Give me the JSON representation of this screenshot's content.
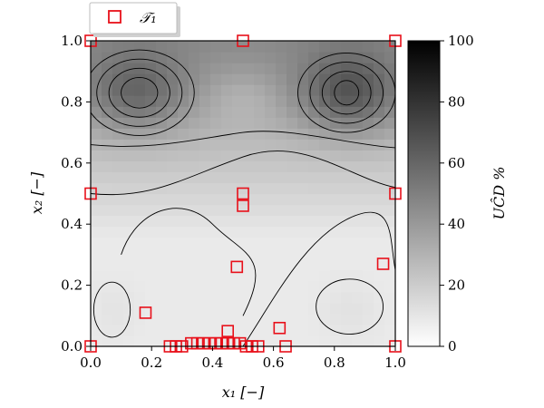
{
  "chart_data": {
    "type": "heatmap",
    "title": "",
    "xlabel": "x₁ [−]",
    "ylabel": "x₂ [−]",
    "xlim": [
      0.0,
      1.0
    ],
    "ylim": [
      0.0,
      1.0
    ],
    "x_ticks": [
      "0.0",
      "0.2",
      "0.4",
      "0.6",
      "0.8",
      "1.0"
    ],
    "y_ticks": [
      "0.0",
      "0.2",
      "0.4",
      "0.6",
      "0.8",
      "1.0"
    ],
    "colorbar": {
      "label": "UĈD %",
      "range": [
        0,
        100
      ],
      "ticks": [
        "0",
        "20",
        "40",
        "60",
        "80",
        "100"
      ],
      "colormap": "greys"
    },
    "legend": {
      "placement": "top-left",
      "entries": [
        "𝒯₁"
      ]
    },
    "marker_color": "#e8101a",
    "points": [
      [
        0.0,
        1.0
      ],
      [
        0.5,
        1.0
      ],
      [
        1.0,
        1.0
      ],
      [
        0.0,
        0.5
      ],
      [
        0.5,
        0.5
      ],
      [
        0.5,
        0.46
      ],
      [
        1.0,
        0.5
      ],
      [
        0.48,
        0.26
      ],
      [
        0.96,
        0.27
      ],
      [
        0.18,
        0.11
      ],
      [
        0.62,
        0.06
      ],
      [
        0.45,
        0.05
      ],
      [
        0.0,
        0.0
      ],
      [
        0.64,
        0.0
      ],
      [
        1.0,
        0.0
      ],
      [
        0.26,
        0.0
      ],
      [
        0.28,
        0.0
      ],
      [
        0.3,
        0.0
      ],
      [
        0.33,
        0.01
      ],
      [
        0.35,
        0.01
      ],
      [
        0.37,
        0.01
      ],
      [
        0.39,
        0.01
      ],
      [
        0.41,
        0.01
      ],
      [
        0.43,
        0.01
      ],
      [
        0.45,
        0.01
      ],
      [
        0.47,
        0.01
      ],
      [
        0.49,
        0.01
      ],
      [
        0.51,
        0.0
      ],
      [
        0.53,
        0.0
      ],
      [
        0.55,
        0.0
      ]
    ]
  }
}
